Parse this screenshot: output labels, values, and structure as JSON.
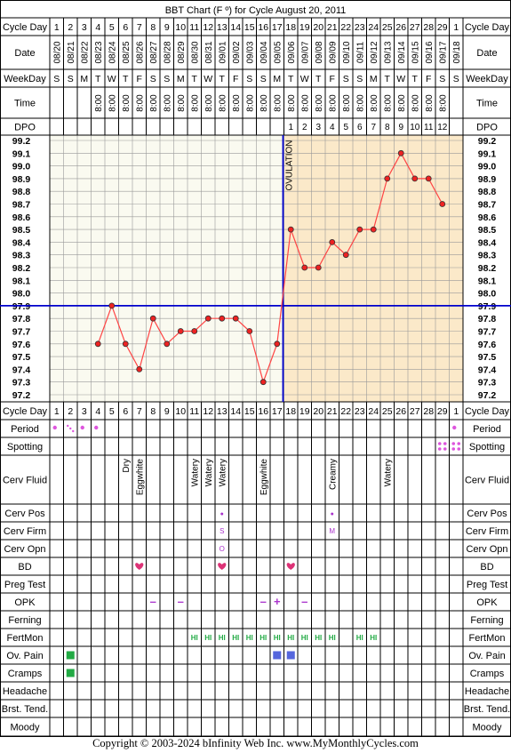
{
  "title": "BBT Chart (F º) for Cycle August 20, 2011",
  "copyright": "Copyright © 2003-2024 bInfinity Web Inc.    www.MyMonthlyCycles.com",
  "colors": {
    "grid": "#999999",
    "post_ovulation_bg": "#fbe9c9",
    "pre_ovulation_bg": "#fafaf0",
    "line": "#ff4444",
    "point_fill": "#ee2222",
    "coverline": "#0000cc",
    "ovulation_line": "#0000cc",
    "green": "#22aa44",
    "purple": "#aa33cc",
    "pink": "#dd3377",
    "blue_square": "#5566dd",
    "spotting_pink": "#dd55dd"
  },
  "row_labels": {
    "cycle_day": "Cycle Day",
    "date": "Date",
    "weekday": "WeekDay",
    "time": "Time",
    "dpo": "DPO",
    "period": "Period",
    "spotting": "Spotting",
    "cerv_fluid": "Cerv Fluid",
    "cerv_pos": "Cerv Pos",
    "cerv_firm": "Cerv Firm",
    "cerv_opn": "Cerv Opn",
    "bd": "BD",
    "preg_test": "Preg Test",
    "opk": "OPK",
    "ferning": "Ferning",
    "fertmon": "FertMon",
    "ov_pain": "Ov. Pain",
    "cramps": "Cramps",
    "headache": "Headache",
    "brst_tend": "Brst. Tend.",
    "moody": "Moody"
  },
  "ovulation_label": "OVULATION",
  "cycle_days": [
    "1",
    "2",
    "3",
    "4",
    "5",
    "6",
    "7",
    "8",
    "9",
    "10",
    "11",
    "12",
    "13",
    "14",
    "15",
    "16",
    "17",
    "18",
    "19",
    "20",
    "21",
    "22",
    "23",
    "24",
    "25",
    "26",
    "27",
    "28",
    "29",
    "1"
  ],
  "dates": [
    "08/20",
    "08/21",
    "08/22",
    "08/23",
    "08/24",
    "08/25",
    "08/26",
    "08/27",
    "08/28",
    "08/29",
    "08/30",
    "08/31",
    "09/01",
    "09/02",
    "09/03",
    "09/04",
    "09/05",
    "09/06",
    "09/07",
    "09/08",
    "09/09",
    "09/10",
    "09/11",
    "09/12",
    "09/13",
    "09/14",
    "09/15",
    "09/16",
    "09/17",
    "09/18"
  ],
  "weekdays": [
    "S",
    "S",
    "M",
    "T",
    "W",
    "T",
    "F",
    "S",
    "S",
    "M",
    "T",
    "W",
    "T",
    "F",
    "S",
    "S",
    "M",
    "T",
    "W",
    "T",
    "F",
    "S",
    "S",
    "M",
    "T",
    "W",
    "T",
    "F",
    "S",
    "S"
  ],
  "times": [
    "",
    "",
    "",
    "8:00",
    "8:00",
    "8:00",
    "8:00",
    "8:00",
    "8:00",
    "8:00",
    "8:00",
    "8:00",
    "8:00",
    "8:00",
    "8:00",
    "8:00",
    "8:00",
    "8:00",
    "8:00",
    "8:00",
    "8:00",
    "8:00",
    "8:00",
    "8:00",
    "8:00",
    "8:00",
    "8:00",
    "8:00",
    "8:00",
    ""
  ],
  "dpo": [
    "",
    "",
    "",
    "",
    "",
    "",
    "",
    "",
    "",
    "",
    "",
    "",
    "",
    "",
    "",
    "",
    "",
    "1",
    "2",
    "3",
    "4",
    "5",
    "6",
    "7",
    "8",
    "9",
    "10",
    "11",
    "12",
    ""
  ],
  "chart_data": {
    "type": "line",
    "title": "BBT Chart (F º) for Cycle August 20, 2011",
    "x": [
      1,
      2,
      3,
      4,
      5,
      6,
      7,
      8,
      9,
      10,
      11,
      12,
      13,
      14,
      15,
      16,
      17,
      18,
      19,
      20,
      21,
      22,
      23,
      24,
      25,
      26,
      27,
      28,
      29,
      30
    ],
    "temperatures": [
      null,
      null,
      null,
      97.6,
      97.9,
      97.6,
      97.4,
      97.8,
      97.6,
      97.7,
      97.7,
      97.8,
      97.8,
      97.8,
      97.7,
      97.3,
      97.6,
      98.5,
      98.2,
      98.2,
      98.4,
      98.3,
      98.5,
      98.5,
      98.9,
      99.1,
      98.9,
      98.9,
      98.7,
      null
    ],
    "y_ticks": [
      "99.2",
      "99.1",
      "99.0",
      "98.9",
      "98.8",
      "98.7",
      "98.6",
      "98.5",
      "98.4",
      "98.3",
      "98.2",
      "98.1",
      "98.0",
      "97.9",
      "97.8",
      "97.7",
      "97.6",
      "97.5",
      "97.4",
      "97.3",
      "97.2"
    ],
    "ylim": [
      97.2,
      99.2
    ],
    "coverline": 97.9,
    "ovulation_day": 17,
    "grid": true
  },
  "observations": {
    "period": [
      {
        "day": 1,
        "kind": "heavy"
      },
      {
        "day": 2,
        "kind": "spotty"
      },
      {
        "day": 3,
        "kind": "heavy"
      },
      {
        "day": 4,
        "kind": "heavy"
      },
      {
        "day": 30,
        "kind": "heavy"
      }
    ],
    "spotting": [
      29,
      30
    ],
    "cerv_fluid": [
      {
        "day": 6,
        "text": "Dry"
      },
      {
        "day": 7,
        "text": "Eggwhite"
      },
      {
        "day": 11,
        "text": "Watery"
      },
      {
        "day": 12,
        "text": "Watery"
      },
      {
        "day": 13,
        "text": "Watery"
      },
      {
        "day": 16,
        "text": "Eggwhite"
      },
      {
        "day": 21,
        "text": "Creamy"
      },
      {
        "day": 25,
        "text": "Watery"
      }
    ],
    "cerv_pos": [
      {
        "day": 13,
        "text": "●"
      },
      {
        "day": 21,
        "text": "●"
      }
    ],
    "cerv_firm": [
      {
        "day": 13,
        "text": "S"
      },
      {
        "day": 21,
        "text": "M"
      }
    ],
    "cerv_opn": [
      {
        "day": 13,
        "text": "O"
      }
    ],
    "bd": [
      7,
      13,
      18
    ],
    "opk": [
      {
        "day": 8,
        "text": "–"
      },
      {
        "day": 10,
        "text": "–"
      },
      {
        "day": 16,
        "text": "–"
      },
      {
        "day": 17,
        "text": "+"
      },
      {
        "day": 19,
        "text": "–"
      }
    ],
    "fertmon": [
      {
        "day": 11,
        "text": "HI"
      },
      {
        "day": 12,
        "text": "HI"
      },
      {
        "day": 13,
        "text": "HI"
      },
      {
        "day": 14,
        "text": "HI"
      },
      {
        "day": 15,
        "text": "HI"
      },
      {
        "day": 16,
        "text": "HI"
      },
      {
        "day": 17,
        "text": "HI"
      },
      {
        "day": 18,
        "text": "HI"
      },
      {
        "day": 19,
        "text": "HI"
      },
      {
        "day": 20,
        "text": "HI"
      },
      {
        "day": 21,
        "text": "HI"
      },
      {
        "day": 23,
        "text": "HI"
      },
      {
        "day": 24,
        "text": "HI"
      }
    ],
    "ov_pain": [
      {
        "day": 2,
        "color": "green"
      },
      {
        "day": 17,
        "color": "blue"
      },
      {
        "day": 18,
        "color": "blue"
      }
    ],
    "cramps": [
      {
        "day": 2,
        "color": "green"
      }
    ]
  }
}
